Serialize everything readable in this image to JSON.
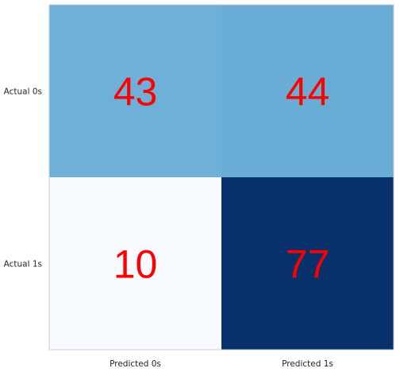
{
  "chart_data": {
    "type": "heatmap",
    "title": "",
    "xlabel": "",
    "ylabel": "",
    "x_categories": [
      "Predicted 0s",
      "Predicted 1s"
    ],
    "y_categories": [
      "Actual 0s",
      "Actual 1s"
    ],
    "values": [
      [
        43,
        44
      ],
      [
        10,
        77
      ]
    ],
    "colormap": "Blues",
    "value_range": [
      10,
      77
    ],
    "label_color": "#ff0000",
    "grid": false
  }
}
